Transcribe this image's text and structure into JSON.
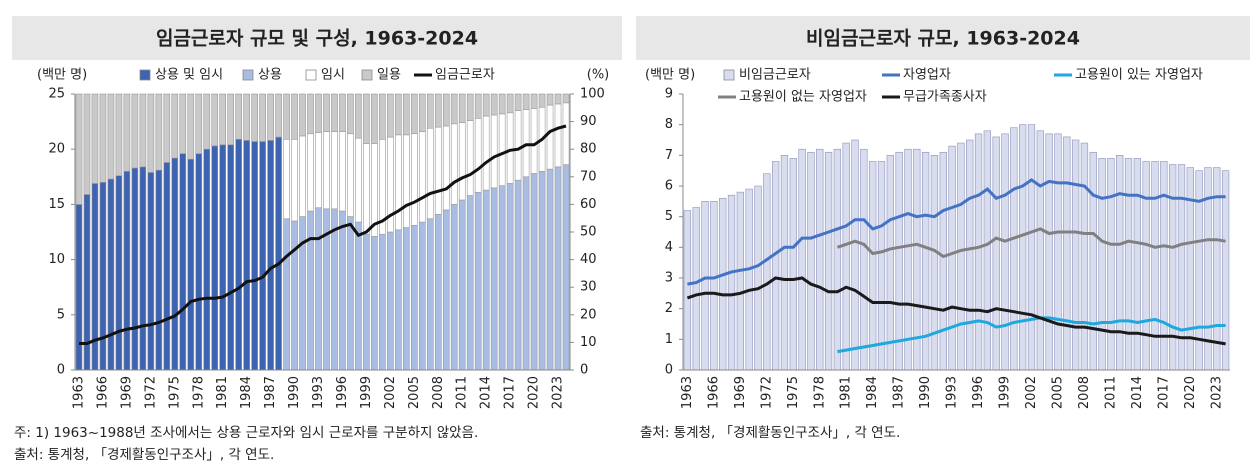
{
  "chart_data": [
    {
      "type": "combo",
      "title": "임금근로자 규모 및 구성, 1963-2024",
      "y_label": "(백만 명)",
      "y2_label": "(%)",
      "stacked": true,
      "categories": [
        "1963",
        null,
        null,
        "1966",
        null,
        null,
        "1969",
        null,
        null,
        "1972",
        null,
        null,
        "1975",
        null,
        null,
        "1978",
        null,
        null,
        "1981",
        null,
        null,
        "1984",
        null,
        null,
        "1987",
        null,
        null,
        "1990",
        null,
        null,
        "1993",
        null,
        null,
        "1996",
        null,
        null,
        "1999",
        null,
        null,
        "2002",
        null,
        null,
        "2005",
        null,
        null,
        "2008",
        null,
        null,
        "2011",
        null,
        null,
        "2014",
        null,
        null,
        "2017",
        null,
        null,
        "2020",
        null,
        null,
        "2023",
        null
      ],
      "ylim": [
        0,
        25
      ],
      "yticks": [
        0,
        5,
        10,
        15,
        20,
        25
      ],
      "y2lim": [
        0,
        100
      ],
      "y2ticks": [
        0,
        10,
        20,
        30,
        40,
        50,
        60,
        70,
        80,
        90,
        100
      ],
      "series": [
        {
          "name": "상용 및 임시",
          "type": "bar",
          "axis": "y2",
          "color": "#3e63b0",
          "values": [
            60,
            63.6,
            67.6,
            68,
            69.2,
            70.4,
            72,
            73.2,
            73.6,
            71.6,
            72.4,
            75.2,
            76.8,
            78.4,
            76.4,
            78.4,
            80,
            81.2,
            81.6,
            81.6,
            83.6,
            83.2,
            82.8,
            82.8,
            83.2,
            84.4,
            null,
            null,
            null,
            null,
            null,
            null,
            null,
            null,
            null,
            null,
            null,
            null,
            null,
            null,
            null,
            null,
            null,
            null,
            null,
            null,
            null,
            null,
            null,
            null,
            null,
            null,
            null,
            null,
            null,
            null,
            null,
            null,
            null,
            null,
            null,
            null
          ]
        },
        {
          "name": "상용",
          "type": "bar",
          "axis": "y2",
          "color": "#a9bde2",
          "values": [
            null,
            null,
            null,
            null,
            null,
            null,
            null,
            null,
            null,
            null,
            null,
            null,
            null,
            null,
            null,
            null,
            null,
            null,
            null,
            null,
            null,
            null,
            null,
            null,
            null,
            null,
            54.8,
            54,
            55.6,
            57.6,
            58.8,
            58.4,
            58.4,
            57.6,
            55.6,
            53.6,
            49.2,
            48.4,
            49.2,
            50,
            50.8,
            51.6,
            52.4,
            53.6,
            54.8,
            56.4,
            58,
            60,
            61.6,
            63.2,
            64.4,
            65.2,
            66,
            66.8,
            67.6,
            68.8,
            70,
            71.2,
            72,
            72.8,
            73.6,
            74.4
          ]
        },
        {
          "name": "임시",
          "type": "bar",
          "axis": "y2",
          "color": "#ffffff",
          "values": [
            null,
            null,
            null,
            null,
            null,
            null,
            null,
            null,
            null,
            null,
            null,
            null,
            null,
            null,
            null,
            null,
            null,
            null,
            null,
            null,
            null,
            null,
            null,
            null,
            null,
            null,
            28.8,
            29.6,
            29.2,
            28,
            27.2,
            28,
            28,
            28.8,
            30,
            30.4,
            32.8,
            33.6,
            34.4,
            34.4,
            34.4,
            33.6,
            33.2,
            32.8,
            32.8,
            31.6,
            30.4,
            29.2,
            28,
            27.2,
            26.8,
            26.8,
            26.4,
            26,
            25.6,
            25.2,
            24.4,
            23.6,
            23.2,
            23.2,
            22.8,
            22.4
          ]
        },
        {
          "name": "일용",
          "type": "bar",
          "axis": "y2",
          "color": "#c9c9c9",
          "values": [
            40,
            36.4,
            32.4,
            32,
            30.8,
            29.6,
            28,
            26.8,
            26.4,
            28.4,
            27.6,
            24.8,
            23.2,
            21.6,
            23.6,
            21.6,
            20,
            18.8,
            18.4,
            18.4,
            16.4,
            16.8,
            17.2,
            17.2,
            16.8,
            15.6,
            16.4,
            16.4,
            15.2,
            14.4,
            14,
            13.6,
            13.6,
            13.6,
            14.4,
            16,
            18,
            18,
            16.4,
            15.6,
            14.8,
            14.8,
            14.4,
            13.6,
            12.4,
            12,
            11.6,
            10.8,
            10.4,
            9.6,
            8.8,
            8,
            7.6,
            7.2,
            6.8,
            6,
            5.6,
            5.2,
            4.8,
            4,
            3.6,
            3.2
          ]
        },
        {
          "name": "임금근로자",
          "type": "line",
          "axis": "y",
          "color": "#111111",
          "values": [
            2.4,
            2.4,
            2.7,
            2.9,
            3.2,
            3.5,
            3.7,
            3.8,
            4.0,
            4.1,
            4.3,
            4.6,
            4.9,
            5.5,
            6.2,
            6.4,
            6.5,
            6.5,
            6.6,
            7.0,
            7.4,
            8.0,
            8.1,
            8.4,
            9.2,
            9.6,
            10.3,
            10.9,
            11.5,
            11.9,
            11.9,
            12.3,
            12.7,
            13.0,
            13.2,
            12.2,
            12.5,
            13.2,
            13.5,
            14.0,
            14.4,
            14.9,
            15.2,
            15.6,
            16.0,
            16.2,
            16.4,
            17.0,
            17.4,
            17.7,
            18.2,
            18.8,
            19.3,
            19.6,
            19.9,
            20.0,
            20.4,
            20.4,
            20.9,
            21.6,
            21.9,
            22.1
          ]
        }
      ]
    },
    {
      "type": "combo",
      "title": "비임금근로자 규모, 1963-2024",
      "y_label": "(백만 명)",
      "stacked": true,
      "categories": [
        "1963",
        null,
        null,
        "1966",
        null,
        null,
        "1969",
        null,
        null,
        "1972",
        null,
        null,
        "1975",
        null,
        null,
        "1978",
        null,
        null,
        "1981",
        null,
        null,
        "1984",
        null,
        null,
        "1987",
        null,
        null,
        "1990",
        null,
        null,
        "1993",
        null,
        null,
        "1996",
        null,
        null,
        "1999",
        null,
        null,
        "2002",
        null,
        null,
        "2005",
        null,
        null,
        "2008",
        null,
        null,
        "2011",
        null,
        null,
        "2014",
        null,
        null,
        "2017",
        null,
        null,
        "2020",
        null,
        null,
        "2023",
        null
      ],
      "ylim": [
        0,
        9
      ],
      "yticks": [
        0,
        1,
        2,
        3,
        4,
        5,
        6,
        7,
        8,
        9
      ],
      "series": [
        {
          "name": "비임금근로자",
          "type": "bar",
          "axis": "y",
          "color": "#d8dcef",
          "values": [
            5.2,
            5.3,
            5.5,
            5.5,
            5.6,
            5.7,
            5.8,
            5.9,
            6.0,
            6.4,
            6.8,
            7.0,
            6.9,
            7.2,
            7.1,
            7.2,
            7.1,
            7.2,
            7.4,
            7.5,
            7.2,
            6.8,
            6.8,
            7.0,
            7.1,
            7.2,
            7.2,
            7.1,
            7.0,
            7.1,
            7.3,
            7.4,
            7.5,
            7.7,
            7.8,
            7.6,
            7.7,
            7.9,
            8.0,
            8.0,
            7.8,
            7.7,
            7.7,
            7.6,
            7.5,
            7.4,
            7.1,
            6.9,
            6.9,
            7.0,
            6.9,
            6.9,
            6.8,
            6.8,
            6.8,
            6.7,
            6.7,
            6.6,
            6.5,
            6.6,
            6.6,
            6.5
          ]
        },
        {
          "name": "자영업자",
          "type": "line",
          "axis": "y",
          "color": "#4472c4",
          "values": [
            2.8,
            2.85,
            3.0,
            3.0,
            3.1,
            3.2,
            3.25,
            3.3,
            3.4,
            3.6,
            3.8,
            4.0,
            4.0,
            4.3,
            4.3,
            4.4,
            4.5,
            4.6,
            4.7,
            4.9,
            4.9,
            4.6,
            4.7,
            4.9,
            5.0,
            5.1,
            5.0,
            5.05,
            5.0,
            5.2,
            5.3,
            5.4,
            5.6,
            5.7,
            5.9,
            5.6,
            5.7,
            5.9,
            6.0,
            6.2,
            6.0,
            6.15,
            6.1,
            6.1,
            6.05,
            6.0,
            5.7,
            5.6,
            5.65,
            5.75,
            5.7,
            5.7,
            5.6,
            5.6,
            5.7,
            5.6,
            5.6,
            5.55,
            5.5,
            5.6,
            5.65,
            5.65
          ]
        },
        {
          "name": "고용원이 있는 자영업자",
          "type": "line",
          "axis": "y",
          "color": "#1fa8dd",
          "values": [
            null,
            null,
            null,
            null,
            null,
            null,
            null,
            null,
            null,
            null,
            null,
            null,
            null,
            null,
            null,
            null,
            null,
            0.6,
            0.65,
            0.7,
            0.75,
            0.8,
            0.85,
            0.9,
            0.95,
            1.0,
            1.05,
            1.1,
            1.2,
            1.3,
            1.4,
            1.5,
            1.55,
            1.6,
            1.55,
            1.4,
            1.45,
            1.55,
            1.6,
            1.65,
            1.7,
            1.7,
            1.65,
            1.6,
            1.55,
            1.55,
            1.5,
            1.55,
            1.55,
            1.6,
            1.6,
            1.55,
            1.6,
            1.65,
            1.55,
            1.4,
            1.3,
            1.35,
            1.4,
            1.4,
            1.45,
            1.45
          ]
        },
        {
          "name": "고용원이 없는 자영업자",
          "type": "line",
          "axis": "y",
          "color": "#808080",
          "values": [
            null,
            null,
            null,
            null,
            null,
            null,
            null,
            null,
            null,
            null,
            null,
            null,
            null,
            null,
            null,
            null,
            null,
            4.0,
            4.1,
            4.2,
            4.1,
            3.8,
            3.85,
            3.95,
            4.0,
            4.05,
            4.1,
            4.0,
            3.9,
            3.7,
            3.8,
            3.9,
            3.95,
            4.0,
            4.1,
            4.3,
            4.2,
            4.3,
            4.4,
            4.5,
            4.6,
            4.45,
            4.5,
            4.5,
            4.5,
            4.45,
            4.45,
            4.2,
            4.1,
            4.1,
            4.2,
            4.15,
            4.1,
            4.0,
            4.05,
            4.0,
            4.1,
            4.15,
            4.2,
            4.25,
            4.25,
            4.2
          ]
        },
        {
          "name": "무급가족종사자",
          "type": "line",
          "axis": "y",
          "color": "#1a1a1a",
          "values": [
            2.35,
            2.45,
            2.5,
            2.5,
            2.45,
            2.45,
            2.5,
            2.6,
            2.65,
            2.8,
            3.0,
            2.95,
            2.95,
            3.0,
            2.8,
            2.7,
            2.55,
            2.55,
            2.7,
            2.6,
            2.4,
            2.2,
            2.2,
            2.2,
            2.15,
            2.15,
            2.1,
            2.05,
            2.0,
            1.95,
            2.05,
            2.0,
            1.95,
            1.95,
            1.9,
            2.0,
            1.95,
            1.9,
            1.85,
            1.8,
            1.7,
            1.6,
            1.5,
            1.45,
            1.4,
            1.4,
            1.35,
            1.3,
            1.25,
            1.25,
            1.2,
            1.2,
            1.15,
            1.1,
            1.1,
            1.1,
            1.05,
            1.05,
            1.0,
            0.95,
            0.9,
            0.85
          ]
        }
      ]
    }
  ],
  "notes": {
    "left": [
      "주: 1) 1963~1988년 조사에서는 상용 근로자와 임시 근로자를 구분하지 않았음.",
      "출처: 통계청, 「경제활동인구조사」, 각 연도."
    ],
    "right": "출처: 통계청, 「경제활동인구조사」, 각 연도."
  }
}
